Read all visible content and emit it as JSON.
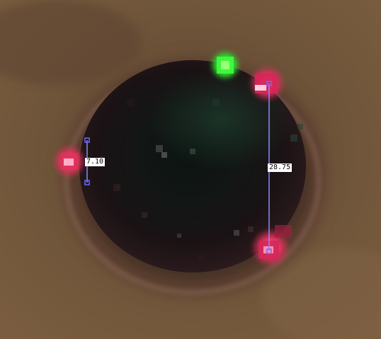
{
  "measurements": [
    {
      "value": "7.10"
    },
    {
      "value": "28.75"
    }
  ],
  "colors": {
    "skin": "#6b5238",
    "pupil": "#0f0c0d",
    "iris_green": "#1d3a2c",
    "marker_red": "#e0305a",
    "marker_pink": "#ff9ab8",
    "marker_green": "#3aff3a",
    "measure_line": "#8a8aff"
  }
}
